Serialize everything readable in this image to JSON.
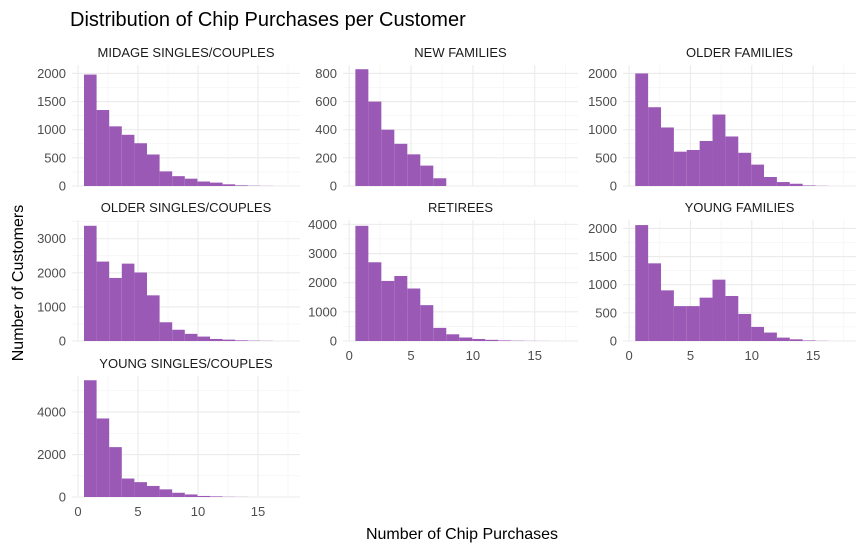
{
  "chart_data": {
    "type": "bar",
    "title": "Distribution of Chip Purchases per Customer",
    "xlabel": "Number of Chip Purchases",
    "ylabel": "Number of Customers",
    "xlim": [
      -0.5,
      18.5
    ],
    "x_ticks": [
      0,
      5,
      10,
      15
    ],
    "bin_width": 1.05,
    "bin_start": 0.5,
    "bar_color": "#9B59B6",
    "grid": true,
    "panels": [
      {
        "name": "MIDAGE SINGLES/COUPLES",
        "ylim": [
          0,
          2150
        ],
        "y_ticks": [
          0,
          500,
          1000,
          1500,
          2000
        ],
        "values": [
          1980,
          1350,
          1060,
          910,
          760,
          560,
          260,
          175,
          130,
          80,
          60,
          30,
          12,
          5,
          2,
          0,
          0
        ]
      },
      {
        "name": "NEW FAMILIES",
        "ylim": [
          0,
          860
        ],
        "y_ticks": [
          0,
          200,
          400,
          600,
          800
        ],
        "values": [
          830,
          600,
          400,
          300,
          225,
          145,
          55,
          0,
          0,
          0,
          0,
          0,
          0,
          0,
          0,
          0,
          0
        ]
      },
      {
        "name": "OLDER FAMILIES",
        "ylim": [
          0,
          2150
        ],
        "y_ticks": [
          0,
          500,
          1000,
          1500,
          2000
        ],
        "values": [
          2000,
          1400,
          1040,
          610,
          640,
          800,
          1270,
          880,
          590,
          380,
          160,
          70,
          40,
          10,
          3,
          0,
          0
        ]
      },
      {
        "name": "OLDER SINGLES/COUPLES",
        "ylim": [
          0,
          3550
        ],
        "y_ticks": [
          0,
          1000,
          2000,
          3000
        ],
        "values": [
          3380,
          2330,
          1850,
          2270,
          2010,
          1340,
          550,
          330,
          210,
          130,
          60,
          40,
          20,
          10,
          5,
          0,
          0
        ]
      },
      {
        "name": "RETIREES",
        "ylim": [
          0,
          4150
        ],
        "y_ticks": [
          0,
          1000,
          2000,
          3000,
          4000
        ],
        "values": [
          3950,
          2700,
          2060,
          2230,
          1800,
          1230,
          450,
          230,
          120,
          70,
          40,
          20,
          10,
          5,
          2,
          0,
          0
        ]
      },
      {
        "name": "YOUNG FAMILIES",
        "ylim": [
          0,
          2150
        ],
        "y_ticks": [
          0,
          500,
          1000,
          1500,
          2000
        ],
        "values": [
          2060,
          1380,
          900,
          620,
          620,
          770,
          1090,
          800,
          480,
          250,
          150,
          60,
          30,
          10,
          3,
          0,
          0
        ]
      },
      {
        "name": "YOUNG SINGLES/COUPLES",
        "ylim": [
          0,
          5700
        ],
        "y_ticks": [
          0,
          2000,
          4000
        ],
        "values": [
          5500,
          3700,
          2350,
          870,
          700,
          520,
          360,
          200,
          120,
          50,
          30,
          10,
          5,
          0,
          0,
          0,
          0
        ]
      }
    ]
  }
}
